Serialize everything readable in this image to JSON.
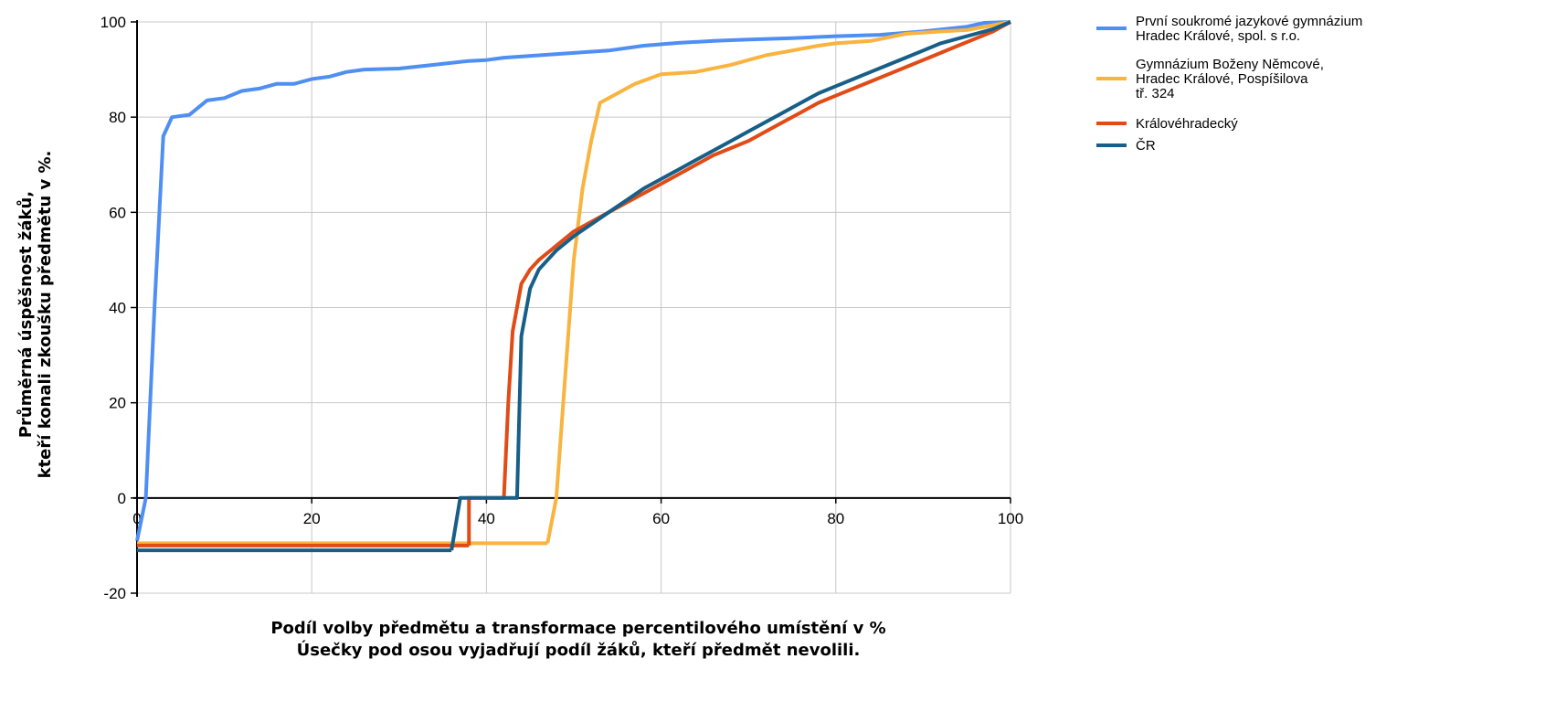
{
  "chart_data": {
    "type": "line",
    "xlabel": "Podíl volby předmětu a transformace percentilového umístění v %",
    "xlabel_note": "Úsečky pod osou vyjadřují podíl žáků, kteří předmět nevolili.",
    "ylabel_lines": [
      "Průměrná úspěšnost žáků,",
      "kteří konali zkoušku předmětu v %."
    ],
    "xlim": [
      0,
      100
    ],
    "ylim": [
      -20,
      100
    ],
    "x_ticks": [
      0,
      20,
      40,
      60,
      80,
      100
    ],
    "y_ticks": [
      -20,
      0,
      20,
      40,
      60,
      80,
      100
    ],
    "grid": true,
    "legend_position": "right",
    "series": [
      {
        "name_lines": [
          "První soukromé jazykové gymnázium",
          "Hradec Králové, spol. s r.o."
        ],
        "color": "#4F8FF3",
        "points": [
          [
            0,
            -9
          ],
          [
            1,
            0
          ],
          [
            2,
            40
          ],
          [
            3,
            76
          ],
          [
            4,
            80
          ],
          [
            6,
            80.5
          ],
          [
            8,
            83.5
          ],
          [
            10,
            84
          ],
          [
            12,
            85.5
          ],
          [
            14,
            86
          ],
          [
            16,
            87
          ],
          [
            18,
            87
          ],
          [
            20,
            88
          ],
          [
            22,
            88.5
          ],
          [
            24,
            89.5
          ],
          [
            26,
            90
          ],
          [
            30,
            90.2
          ],
          [
            34,
            91
          ],
          [
            38,
            91.8
          ],
          [
            40,
            92
          ],
          [
            42,
            92.5
          ],
          [
            46,
            93
          ],
          [
            50,
            93.5
          ],
          [
            54,
            94
          ],
          [
            58,
            95
          ],
          [
            62,
            95.6
          ],
          [
            66,
            96
          ],
          [
            70,
            96.3
          ],
          [
            75,
            96.6
          ],
          [
            80,
            97
          ],
          [
            85,
            97.3
          ],
          [
            90,
            98
          ],
          [
            95,
            99
          ],
          [
            97,
            99.8
          ],
          [
            100,
            100
          ]
        ]
      },
      {
        "name_lines": [
          "Gymnázium Boženy Němcové,",
          "Hradec Králové, Pospíšilova",
          "tř. 324"
        ],
        "color": "#F9B440",
        "floor": [
          0,
          47,
          -9.5
        ],
        "points": [
          [
            48,
            0
          ],
          [
            49,
            25
          ],
          [
            50,
            50
          ],
          [
            51,
            65
          ],
          [
            52,
            75
          ],
          [
            53,
            83
          ],
          [
            55,
            85
          ],
          [
            57,
            87
          ],
          [
            60,
            89
          ],
          [
            64,
            89.5
          ],
          [
            68,
            91
          ],
          [
            70,
            92
          ],
          [
            72,
            93
          ],
          [
            75,
            94
          ],
          [
            78,
            95
          ],
          [
            80,
            95.5
          ],
          [
            84,
            96
          ],
          [
            88,
            97.5
          ],
          [
            92,
            98
          ],
          [
            95,
            98.3
          ],
          [
            100,
            100
          ]
        ]
      },
      {
        "name_lines": [
          "Královéhradecký"
        ],
        "color": "#E04B16",
        "floor": [
          0,
          38,
          -10
        ],
        "points": [
          [
            38,
            0
          ],
          [
            42,
            0
          ],
          [
            42.5,
            20
          ],
          [
            43,
            35
          ],
          [
            44,
            45
          ],
          [
            45,
            48
          ],
          [
            46,
            50
          ],
          [
            48,
            53
          ],
          [
            50,
            56
          ],
          [
            52,
            58
          ],
          [
            54,
            60
          ],
          [
            56,
            62
          ],
          [
            58,
            64
          ],
          [
            60,
            66
          ],
          [
            62,
            68
          ],
          [
            64,
            70
          ],
          [
            66,
            72
          ],
          [
            68,
            73.5
          ],
          [
            70,
            75
          ],
          [
            72,
            77
          ],
          [
            74,
            79
          ],
          [
            76,
            81
          ],
          [
            78,
            83
          ],
          [
            80,
            84.5
          ],
          [
            82,
            86
          ],
          [
            84,
            87.5
          ],
          [
            86,
            89
          ],
          [
            88,
            90.5
          ],
          [
            90,
            92
          ],
          [
            92,
            93.5
          ],
          [
            94,
            95
          ],
          [
            96,
            96.5
          ],
          [
            98,
            98
          ],
          [
            100,
            100
          ]
        ]
      },
      {
        "name_lines": [
          "ČR"
        ],
        "color": "#175F87",
        "floor": [
          0,
          36,
          -11
        ],
        "points": [
          [
            37,
            0
          ],
          [
            43.5,
            0
          ],
          [
            44,
            34
          ],
          [
            45,
            44
          ],
          [
            46,
            48
          ],
          [
            48,
            52
          ],
          [
            50,
            55
          ],
          [
            52,
            57.5
          ],
          [
            54,
            60
          ],
          [
            56,
            62.5
          ],
          [
            58,
            65
          ],
          [
            60,
            67
          ],
          [
            62,
            69
          ],
          [
            64,
            71
          ],
          [
            66,
            73
          ],
          [
            68,
            75
          ],
          [
            70,
            77
          ],
          [
            72,
            79
          ],
          [
            74,
            81
          ],
          [
            76,
            83
          ],
          [
            78,
            85
          ],
          [
            80,
            86.5
          ],
          [
            82,
            88
          ],
          [
            84,
            89.5
          ],
          [
            86,
            91
          ],
          [
            88,
            92.5
          ],
          [
            90,
            94
          ],
          [
            92,
            95.5
          ],
          [
            94,
            96.5
          ],
          [
            96,
            97.5
          ],
          [
            98,
            98.5
          ],
          [
            100,
            100
          ]
        ]
      }
    ]
  }
}
